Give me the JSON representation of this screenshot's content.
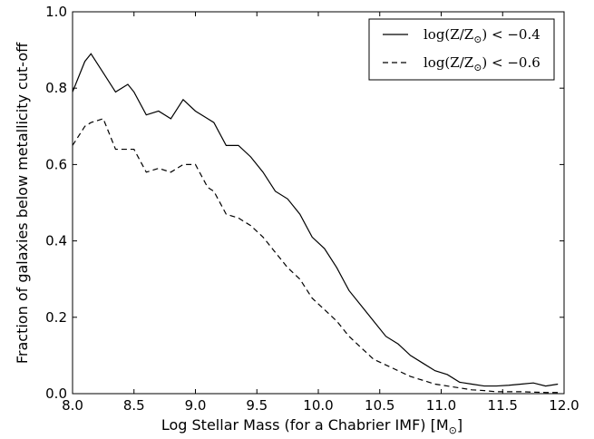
{
  "chart_data": {
    "type": "line",
    "xlabel": "Log Stellar Mass (for a Chabrier IMF) [M",
    "xlabel_sub": "⊙",
    "xlabel_end": "]",
    "ylabel": "Fraction of galaxies below metallicity cut-off",
    "xlim": [
      8.0,
      12.0
    ],
    "ylim": [
      0.0,
      1.0
    ],
    "xticks": [
      "8.0",
      "8.5",
      "9.0",
      "9.5",
      "10.0",
      "10.5",
      "11.0",
      "11.5",
      "12.0"
    ],
    "yticks": [
      "0.0",
      "0.2",
      "0.4",
      "0.6",
      "0.8",
      "1.0"
    ],
    "legend_position": "top-right",
    "x": [
      8.0,
      8.1,
      8.15,
      8.25,
      8.35,
      8.45,
      8.5,
      8.6,
      8.7,
      8.8,
      8.9,
      9.0,
      9.1,
      9.15,
      9.25,
      9.35,
      9.45,
      9.55,
      9.65,
      9.75,
      9.85,
      9.95,
      10.05,
      10.15,
      10.25,
      10.35,
      10.45,
      10.55,
      10.65,
      10.75,
      10.85,
      10.95,
      11.05,
      11.15,
      11.25,
      11.35,
      11.45,
      11.55,
      11.65,
      11.75,
      11.85,
      11.95
    ],
    "series": [
      {
        "name_pre": "log(Z/Z",
        "name_sub": "⊙",
        "name_post": ") < −0.4",
        "style": "solid",
        "values": [
          0.79,
          0.87,
          0.89,
          0.84,
          0.79,
          0.81,
          0.79,
          0.73,
          0.74,
          0.72,
          0.77,
          0.74,
          0.72,
          0.71,
          0.65,
          0.65,
          0.62,
          0.58,
          0.53,
          0.51,
          0.47,
          0.41,
          0.38,
          0.33,
          0.27,
          0.23,
          0.19,
          0.15,
          0.13,
          0.1,
          0.08,
          0.06,
          0.05,
          0.03,
          0.025,
          0.02,
          0.02,
          0.022,
          0.025,
          0.028,
          0.02,
          0.025
        ]
      },
      {
        "name_pre": "log(Z/Z",
        "name_sub": "⊙",
        "name_post": ") < −0.6",
        "style": "dashed",
        "values": [
          0.65,
          0.7,
          0.71,
          0.72,
          0.64,
          0.64,
          0.64,
          0.58,
          0.59,
          0.58,
          0.6,
          0.6,
          0.54,
          0.53,
          0.47,
          0.46,
          0.44,
          0.41,
          0.37,
          0.33,
          0.3,
          0.25,
          0.22,
          0.19,
          0.15,
          0.12,
          0.09,
          0.075,
          0.06,
          0.045,
          0.035,
          0.025,
          0.02,
          0.015,
          0.01,
          0.008,
          0.005,
          0.005,
          0.005,
          0.004,
          0.003,
          0.003
        ]
      }
    ]
  }
}
